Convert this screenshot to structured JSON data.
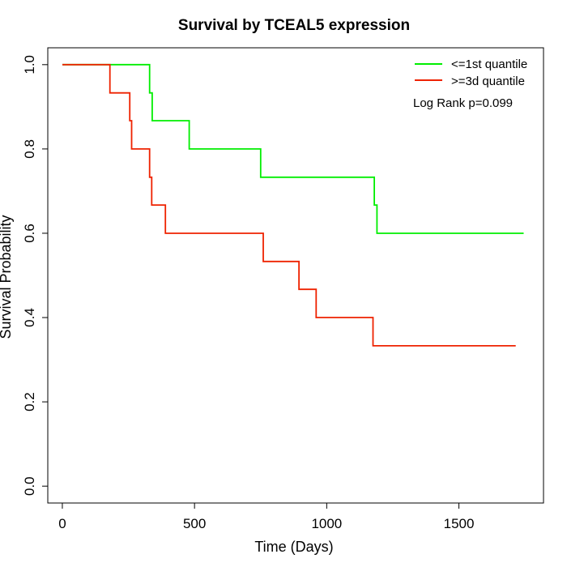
{
  "chart_data": {
    "type": "line",
    "step": true,
    "title": "Survival by TCEAL5 expression",
    "xlabel": "Time (Days)",
    "ylabel": "Survival Probability",
    "xlim": [
      -55,
      1820
    ],
    "ylim": [
      -0.04,
      1.04
    ],
    "xticks": [
      0,
      500,
      1000,
      1500
    ],
    "xtick_labels": [
      "0",
      "500",
      "1000",
      "1500"
    ],
    "yticks": [
      0.0,
      0.2,
      0.4,
      0.6,
      0.8,
      1.0
    ],
    "ytick_labels": [
      "0.0",
      "0.2",
      "0.4",
      "0.6",
      "0.8",
      "1.0"
    ],
    "grid": false,
    "legend_position": "top-right",
    "annotation": "Log Rank p=0.099",
    "series": [
      {
        "name": "<=1st quantile",
        "color": "#00ee00",
        "points": [
          [
            0,
            1.0
          ],
          [
            330,
            1.0
          ],
          [
            330,
            0.933
          ],
          [
            340,
            0.933
          ],
          [
            340,
            0.867
          ],
          [
            480,
            0.867
          ],
          [
            480,
            0.8
          ],
          [
            750,
            0.8
          ],
          [
            750,
            0.733
          ],
          [
            1180,
            0.733
          ],
          [
            1180,
            0.667
          ],
          [
            1190,
            0.667
          ],
          [
            1190,
            0.6
          ],
          [
            1745,
            0.6
          ]
        ]
      },
      {
        "name": ">=3d quantile",
        "color": "#ee2200",
        "points": [
          [
            0,
            1.0
          ],
          [
            180,
            1.0
          ],
          [
            180,
            0.933
          ],
          [
            255,
            0.933
          ],
          [
            255,
            0.867
          ],
          [
            262,
            0.867
          ],
          [
            262,
            0.8
          ],
          [
            330,
            0.8
          ],
          [
            330,
            0.733
          ],
          [
            338,
            0.733
          ],
          [
            338,
            0.667
          ],
          [
            390,
            0.667
          ],
          [
            390,
            0.6
          ],
          [
            760,
            0.6
          ],
          [
            760,
            0.533
          ],
          [
            895,
            0.533
          ],
          [
            895,
            0.467
          ],
          [
            960,
            0.467
          ],
          [
            960,
            0.4
          ],
          [
            1175,
            0.4
          ],
          [
            1175,
            0.333
          ],
          [
            1715,
            0.333
          ]
        ]
      }
    ]
  }
}
